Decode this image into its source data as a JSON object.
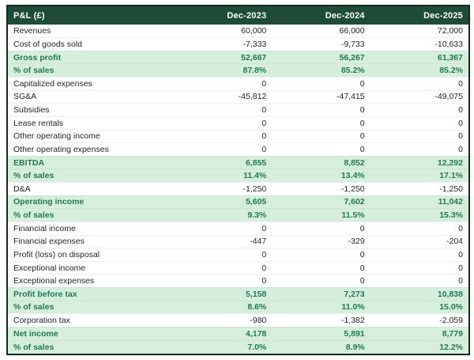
{
  "colors": {
    "header_bg": "#1f4c39",
    "header_text": "#ffffff",
    "frame_border": "#15291e",
    "highlight_bg": "#d6eedc",
    "highlight_text": "#217a55",
    "row_text": "#232629",
    "row_bg": "#ffffff"
  },
  "chart_data": {
    "type": "table",
    "title": "P&L (£)",
    "columns": [
      "P&L (£)",
      "Dec-2023",
      "Dec-2024",
      "Dec-2025"
    ],
    "rows": [
      {
        "label": "Revenues",
        "values": [
          "60,000",
          "66,000",
          "72,000"
        ],
        "highlight": false
      },
      {
        "label": "Cost of goods sold",
        "values": [
          "-7,333",
          "-9,733",
          "-10,633"
        ],
        "highlight": false
      },
      {
        "label": "Gross profit",
        "values": [
          "52,667",
          "56,267",
          "61,367"
        ],
        "highlight": true
      },
      {
        "label": "% of sales",
        "values": [
          "87.8%",
          "85.2%",
          "85.2%"
        ],
        "highlight": true
      },
      {
        "label": "Capitalized expenses",
        "values": [
          "0",
          "0",
          "0"
        ],
        "highlight": false
      },
      {
        "label": "SG&A",
        "values": [
          "-45,812",
          "-47,415",
          "-49,075"
        ],
        "highlight": false
      },
      {
        "label": "Subsidies",
        "values": [
          "0",
          "0",
          "0"
        ],
        "highlight": false
      },
      {
        "label": "Lease rentals",
        "values": [
          "0",
          "0",
          "0"
        ],
        "highlight": false
      },
      {
        "label": "Other operating income",
        "values": [
          "0",
          "0",
          "0"
        ],
        "highlight": false
      },
      {
        "label": "Other operating expenses",
        "values": [
          "0",
          "0",
          "0"
        ],
        "highlight": false
      },
      {
        "label": "EBITDA",
        "values": [
          "6,855",
          "8,852",
          "12,292"
        ],
        "highlight": true
      },
      {
        "label": "% of sales",
        "values": [
          "11.4%",
          "13.4%",
          "17.1%"
        ],
        "highlight": true
      },
      {
        "label": "D&A",
        "values": [
          "-1,250",
          "-1,250",
          "-1,250"
        ],
        "highlight": false
      },
      {
        "label": "Operating income",
        "values": [
          "5,605",
          "7,602",
          "11,042"
        ],
        "highlight": true
      },
      {
        "label": "% of sales",
        "values": [
          "9.3%",
          "11.5%",
          "15.3%"
        ],
        "highlight": true
      },
      {
        "label": "Financial income",
        "values": [
          "0",
          "0",
          "0"
        ],
        "highlight": false
      },
      {
        "label": "Financial expenses",
        "values": [
          "-447",
          "-329",
          "-204"
        ],
        "highlight": false
      },
      {
        "label": "Profit (loss) on disposal",
        "values": [
          "0",
          "0",
          "0"
        ],
        "highlight": false
      },
      {
        "label": "Exceptional income",
        "values": [
          "0",
          "0",
          "0"
        ],
        "highlight": false
      },
      {
        "label": "Exceptional expenses",
        "values": [
          "0",
          "0",
          "0"
        ],
        "highlight": false
      },
      {
        "label": "Profit before tax",
        "values": [
          "5,158",
          "7,273",
          "10,838"
        ],
        "highlight": true
      },
      {
        "label": "% of sales",
        "values": [
          "8.6%",
          "11.0%",
          "15.0%"
        ],
        "highlight": true
      },
      {
        "label": "Corporation tax",
        "values": [
          "-980",
          "-1,382",
          "-2,059"
        ],
        "highlight": false
      },
      {
        "label": "Net income",
        "values": [
          "4,178",
          "5,891",
          "8,779"
        ],
        "highlight": true
      },
      {
        "label": "% of sales",
        "values": [
          "7.0%",
          "8.9%",
          "12.2%"
        ],
        "highlight": true
      }
    ]
  }
}
